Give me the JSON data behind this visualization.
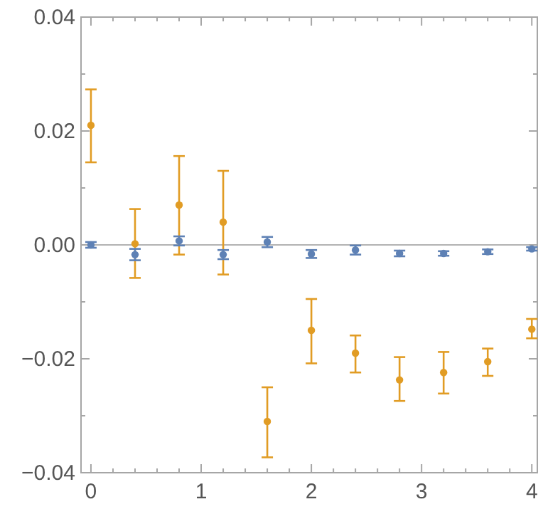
{
  "chart_data": {
    "type": "scatter",
    "x": [
      0,
      0.4,
      0.8,
      1.2,
      1.6,
      2.0,
      2.4,
      2.8,
      3.2,
      3.6,
      4.0
    ],
    "series": [
      {
        "color": "#e19c24",
        "values": [
          0.021,
          0.0002,
          0.007,
          0.004,
          -0.031,
          -0.015,
          -0.019,
          -0.0237,
          -0.0224,
          -0.0205,
          -0.0148
        ],
        "errors": [
          [
            0.0145,
            0.0273
          ],
          [
            -0.0058,
            0.0063
          ],
          [
            -0.0017,
            0.0156
          ],
          [
            -0.0052,
            0.013
          ],
          [
            -0.0373,
            -0.025
          ],
          [
            -0.0208,
            -0.0095
          ],
          [
            -0.0224,
            -0.0159
          ],
          [
            -0.0274,
            -0.0197
          ],
          [
            -0.0261,
            -0.0188
          ],
          [
            -0.023,
            -0.0182
          ],
          [
            -0.0164,
            -0.013
          ]
        ]
      },
      {
        "color": "#5e81b5",
        "values": [
          0,
          -0.0017,
          0.0007,
          -0.0017,
          0.0005,
          -0.0016,
          -0.0009,
          -0.0015,
          -0.0015,
          -0.0012,
          -0.0007
        ],
        "errors": [
          0.0005,
          0.001,
          0.0008,
          0.0008,
          0.0009,
          0.0007,
          0.0008,
          0.0005,
          0.0004,
          0.0004,
          0.0003
        ]
      }
    ],
    "xlim": [
      -0.09,
      4.05
    ],
    "ylim": [
      -0.04,
      0.04
    ],
    "xticks": [
      0,
      {
        "value": 0.2,
        "label": null
      },
      {
        "value": 0.4,
        "label": null
      },
      {
        "value": 0.6,
        "label": null
      },
      {
        "value": 0.8,
        "label": null
      },
      1,
      {
        "value": 1.2,
        "label": null
      },
      {
        "value": 1.4,
        "label": null
      },
      {
        "value": 1.6,
        "label": null
      },
      {
        "value": 1.8,
        "label": null
      },
      2,
      {
        "value": 2.2,
        "label": null
      },
      {
        "value": 2.4,
        "label": null
      },
      {
        "value": 2.6,
        "label": null
      },
      {
        "value": 2.8,
        "label": null
      },
      3,
      {
        "value": 3.2,
        "label": null
      },
      {
        "value": 3.4,
        "label": null
      },
      {
        "value": 3.6,
        "label": null
      },
      {
        "value": 3.8,
        "label": null
      },
      4
    ],
    "yticks": [
      {
        "value": -0.04,
        "label": "−0.04"
      },
      {
        "value": -0.03,
        "label": null
      },
      {
        "value": -0.02,
        "label": "−0.02"
      },
      {
        "value": -0.01,
        "label": null
      },
      {
        "value": 0,
        "label": "0.00"
      },
      {
        "value": 0.01,
        "label": null
      },
      {
        "value": 0.02,
        "label": "0.02"
      },
      {
        "value": 0.03,
        "label": null
      },
      {
        "value": 0.04,
        "label": "0.04"
      }
    ],
    "ref_lines": [
      {
        "axis": "y",
        "value": 0,
        "color": "#b3b3b3"
      }
    ],
    "marker": "circle"
  }
}
